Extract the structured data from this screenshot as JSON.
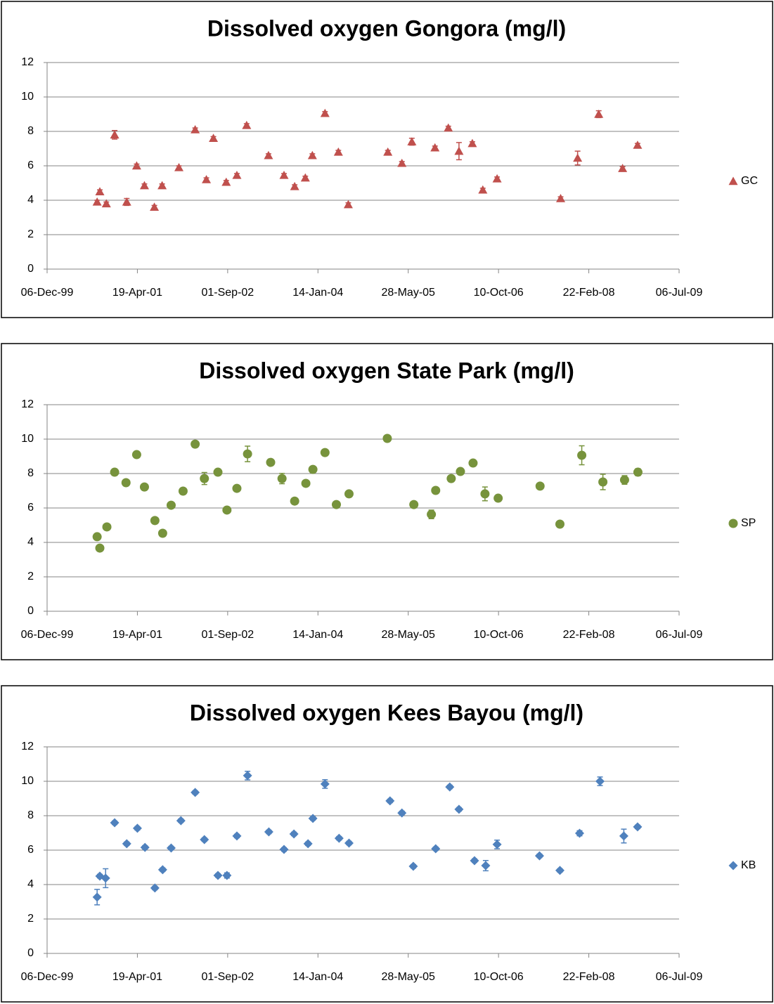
{
  "chart_data": [
    {
      "type": "scatter",
      "title": "Dissolved oxygen Gongora (mg/l)",
      "x": [
        "2000-09-08",
        "2000-09-23",
        "2000-10-29",
        "2000-12-14",
        "2001-02-19",
        "2001-04-15",
        "2001-05-28",
        "2001-07-22",
        "2001-09-03",
        "2001-12-05",
        "2002-03-05",
        "2002-05-06",
        "2002-06-14",
        "2002-08-24",
        "2002-10-22",
        "2002-12-15",
        "2003-04-15",
        "2003-07-10",
        "2003-09-07",
        "2003-11-05",
        "2003-12-14",
        "2004-02-22",
        "2004-05-06",
        "2004-06-30",
        "2005-02-04",
        "2005-04-23",
        "2005-06-17",
        "2005-10-23",
        "2006-01-05",
        "2006-03-05",
        "2006-05-18",
        "2006-07-15",
        "2006-10-02",
        "2007-09-19",
        "2007-12-22",
        "2008-04-17",
        "2008-08-27",
        "2008-11-18"
      ],
      "series": [
        {
          "name": "GC",
          "color": "#c0504d",
          "marker": "triangle",
          "values": [
            3.9,
            4.5,
            3.8,
            7.8,
            3.9,
            6.0,
            4.85,
            3.6,
            4.85,
            5.9,
            8.1,
            5.2,
            7.6,
            5.05,
            5.45,
            8.35,
            6.6,
            5.45,
            4.8,
            5.3,
            6.6,
            9.05,
            6.8,
            3.75,
            6.8,
            6.15,
            7.4,
            7.05,
            8.2,
            6.85,
            7.3,
            4.6,
            5.25,
            4.1,
            6.45,
            9.0,
            5.85,
            7.2
          ],
          "errors": [
            0.1,
            0.1,
            0.1,
            0.25,
            0.2,
            0.1,
            0.1,
            0.1,
            0.1,
            0.1,
            0.1,
            0.1,
            0.1,
            0.1,
            0.1,
            0.1,
            0.1,
            0.1,
            0.1,
            0.1,
            0.1,
            0.1,
            0.1,
            0.1,
            0.1,
            0.1,
            0.2,
            0.1,
            0.1,
            0.5,
            0.1,
            0.1,
            0.1,
            0.1,
            0.4,
            0.2,
            0.1,
            0.1
          ]
        }
      ],
      "xlim": [
        "1999-12-06",
        "2009-07-06"
      ],
      "xticks": [
        {
          "value": "1999-12-06",
          "label": "06-Dec-99"
        },
        {
          "value": "2001-04-19",
          "label": "19-Apr-01"
        },
        {
          "value": "2002-09-01",
          "label": "01-Sep-02"
        },
        {
          "value": "2004-01-14",
          "label": "14-Jan-04"
        },
        {
          "value": "2005-05-28",
          "label": "28-May-05"
        },
        {
          "value": "2006-10-10",
          "label": "10-Oct-06"
        },
        {
          "value": "2008-02-22",
          "label": "22-Feb-08"
        },
        {
          "value": "2009-07-06",
          "label": "06-Jul-09"
        }
      ],
      "ylim": [
        0,
        12
      ],
      "yticks": [
        0,
        2,
        4,
        6,
        8,
        10,
        12
      ],
      "grid": true,
      "legend": "right"
    },
    {
      "type": "scatter",
      "title": "Dissolved oxygen State Park (mg/l)",
      "x": [
        "2000-09-08",
        "2000-09-23",
        "2000-11-01",
        "2000-12-14",
        "2001-02-15",
        "2001-04-15",
        "2001-05-28",
        "2001-07-25",
        "2001-09-06",
        "2001-10-23",
        "2001-12-28",
        "2002-03-05",
        "2002-04-25",
        "2002-07-09",
        "2002-08-28",
        "2002-10-22",
        "2002-12-20",
        "2003-04-27",
        "2003-06-29",
        "2003-09-07",
        "2003-11-08",
        "2003-12-17",
        "2004-02-22",
        "2004-04-25",
        "2004-07-04",
        "2005-02-01",
        "2005-06-28",
        "2005-10-03",
        "2005-10-27",
        "2006-01-21",
        "2006-03-13",
        "2006-05-22",
        "2006-07-27",
        "2006-10-08",
        "2007-05-28",
        "2007-09-15",
        "2008-01-14",
        "2008-05-10",
        "2008-09-07",
        "2008-11-20"
      ],
      "series": [
        {
          "name": "SP",
          "color": "#77933c",
          "marker": "circle",
          "values": [
            4.33,
            3.67,
            4.9,
            8.08,
            7.47,
            9.1,
            7.22,
            5.27,
            4.53,
            6.16,
            6.98,
            9.71,
            7.71,
            8.08,
            5.88,
            7.14,
            9.14,
            8.65,
            7.71,
            6.4,
            7.43,
            8.24,
            9.22,
            6.2,
            6.82,
            10.04,
            6.2,
            5.63,
            7.02,
            7.71,
            8.12,
            8.61,
            6.82,
            6.57,
            7.27,
            5.06,
            9.06,
            7.51,
            7.63,
            8.08
          ],
          "errors": [
            0.1,
            0.1,
            0.1,
            0.1,
            0.1,
            0.1,
            0.1,
            0.1,
            0.1,
            0.1,
            0.1,
            0.1,
            0.35,
            0.1,
            0.1,
            0.1,
            0.45,
            0.15,
            0.3,
            0.1,
            0.1,
            0.1,
            0.1,
            0.1,
            0.1,
            0.1,
            0.1,
            0.25,
            0.1,
            0.1,
            0.1,
            0.1,
            0.4,
            0.1,
            0.1,
            0.1,
            0.55,
            0.45,
            0.25,
            0.2
          ]
        }
      ],
      "xlim": [
        "1999-12-06",
        "2009-07-06"
      ],
      "xticks": [
        {
          "value": "1999-12-06",
          "label": "06-Dec-99"
        },
        {
          "value": "2001-04-19",
          "label": "19-Apr-01"
        },
        {
          "value": "2002-09-01",
          "label": "01-Sep-02"
        },
        {
          "value": "2004-01-14",
          "label": "14-Jan-04"
        },
        {
          "value": "2005-05-28",
          "label": "28-May-05"
        },
        {
          "value": "2006-10-10",
          "label": "10-Oct-06"
        },
        {
          "value": "2008-02-22",
          "label": "22-Feb-08"
        },
        {
          "value": "2009-07-06",
          "label": "06-Jul-09"
        }
      ],
      "ylim": [
        0,
        12
      ],
      "yticks": [
        0,
        2,
        4,
        6,
        8,
        10,
        12
      ],
      "grid": true,
      "legend": "right"
    },
    {
      "type": "scatter",
      "title": "Dissolved oxygen Kees Bayou (mg/l)",
      "x": [
        "2000-09-08",
        "2000-09-23",
        "2000-10-25",
        "2000-12-14",
        "2001-02-19",
        "2001-04-19",
        "2001-05-31",
        "2001-07-25",
        "2001-09-06",
        "2001-10-23",
        "2001-12-16",
        "2002-03-05",
        "2002-04-25",
        "2002-07-09",
        "2002-08-28",
        "2002-10-22",
        "2002-12-20",
        "2003-04-17",
        "2003-07-10",
        "2003-09-03",
        "2003-11-20",
        "2003-12-17",
        "2004-02-22",
        "2004-05-10",
        "2004-07-04",
        "2005-02-16",
        "2005-04-23",
        "2005-06-25",
        "2005-10-27",
        "2006-01-13",
        "2006-03-05",
        "2006-05-30",
        "2006-07-31",
        "2006-10-02",
        "2007-05-25",
        "2007-09-15",
        "2008-01-02",
        "2008-04-24",
        "2008-09-03",
        "2008-11-18"
      ],
      "series": [
        {
          "name": "KB",
          "color": "#4f81bd",
          "marker": "diamond",
          "values": [
            3.27,
            4.49,
            4.37,
            7.59,
            6.37,
            7.27,
            6.16,
            3.8,
            4.86,
            6.12,
            7.71,
            9.35,
            6.61,
            4.53,
            4.53,
            6.82,
            10.33,
            7.06,
            6.04,
            6.94,
            6.37,
            7.84,
            9.84,
            6.69,
            6.41,
            8.86,
            8.16,
            5.06,
            6.08,
            9.67,
            8.37,
            5.39,
            5.1,
            6.33,
            5.67,
            4.82,
            6.98,
            10.0,
            6.82,
            7.35
          ],
          "errors": [
            0.45,
            0.1,
            0.55,
            0.1,
            0.1,
            0.1,
            0.1,
            0.1,
            0.1,
            0.1,
            0.1,
            0.1,
            0.1,
            0.1,
            0.15,
            0.1,
            0.25,
            0.1,
            0.1,
            0.1,
            0.1,
            0.1,
            0.25,
            0.1,
            0.1,
            0.1,
            0.1,
            0.1,
            0.1,
            0.1,
            0.1,
            0.1,
            0.3,
            0.25,
            0.1,
            0.1,
            0.15,
            0.25,
            0.4,
            0.1
          ]
        }
      ],
      "xlim": [
        "1999-12-06",
        "2009-07-06"
      ],
      "xticks": [
        {
          "value": "1999-12-06",
          "label": "06-Dec-99"
        },
        {
          "value": "2001-04-19",
          "label": "19-Apr-01"
        },
        {
          "value": "2002-09-01",
          "label": "01-Sep-02"
        },
        {
          "value": "2004-01-14",
          "label": "14-Jan-04"
        },
        {
          "value": "2005-05-28",
          "label": "28-May-05"
        },
        {
          "value": "2006-10-10",
          "label": "10-Oct-06"
        },
        {
          "value": "2008-02-22",
          "label": "22-Feb-08"
        },
        {
          "value": "2009-07-06",
          "label": "06-Jul-09"
        }
      ],
      "ylim": [
        0,
        12
      ],
      "yticks": [
        0,
        2,
        4,
        6,
        8,
        10,
        12
      ],
      "grid": true,
      "legend": "right"
    }
  ]
}
